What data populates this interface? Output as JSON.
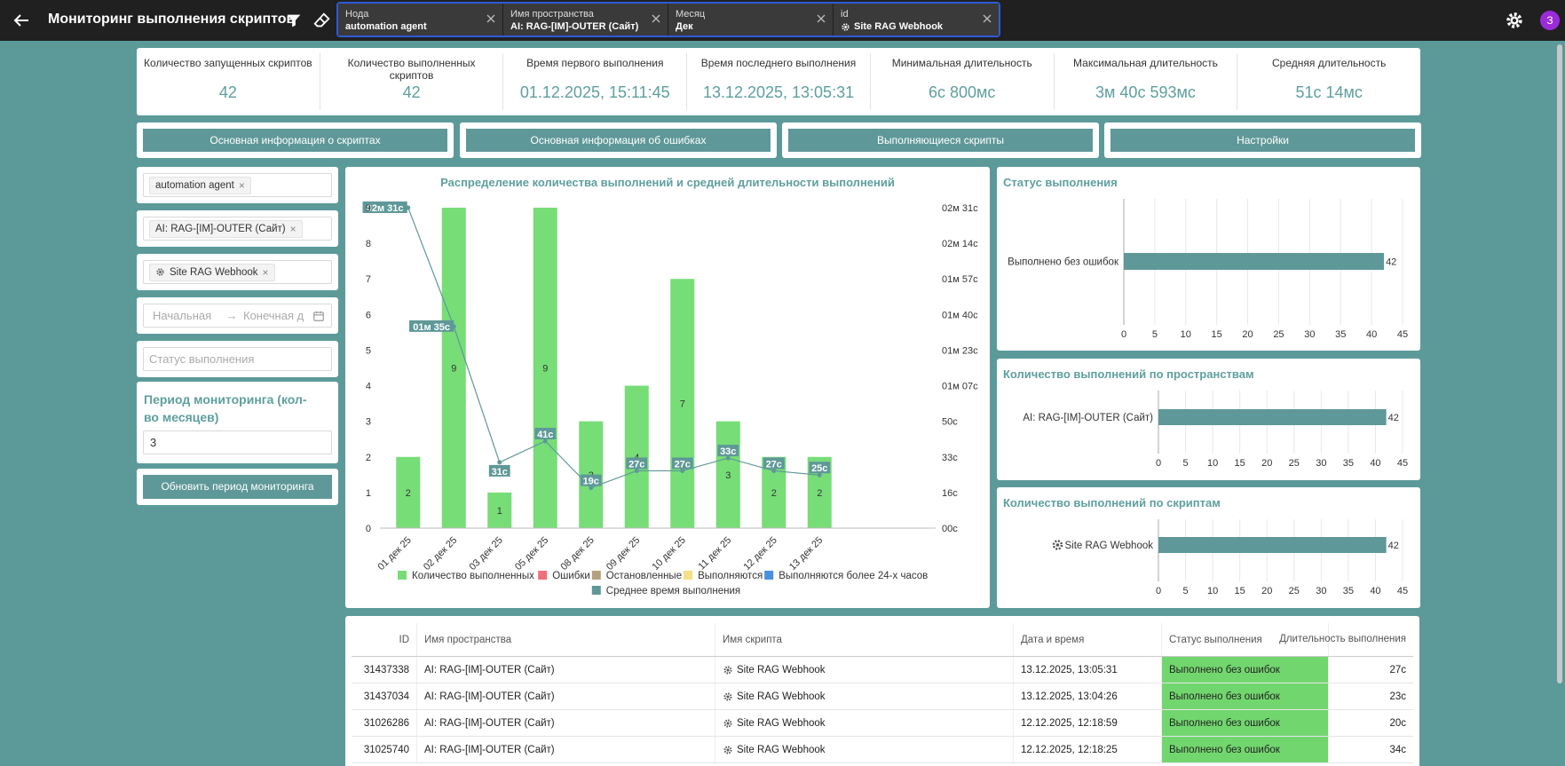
{
  "topbar": {
    "title": "Мониторинг выполнения скриптов",
    "filters": [
      {
        "label": "Нода",
        "value": "automation agent"
      },
      {
        "label": "Имя пространства",
        "value": "AI: RAG-[IM]-OUTER (Сайт)"
      },
      {
        "label": "Месяц",
        "value": "Дек"
      },
      {
        "label": "id",
        "value": "Site RAG Webhook"
      }
    ],
    "avatar": "З"
  },
  "stats": [
    {
      "label": "Количество запущенных скриптов",
      "value": "42"
    },
    {
      "label": "Количество выполненных скриптов",
      "value": "42"
    },
    {
      "label": "Время первого выполнения",
      "value": "01.12.2025, 15:11:45"
    },
    {
      "label": "Время последнего выполнения",
      "value": "13.12.2025, 13:05:31"
    },
    {
      "label": "Минимальная длительность",
      "value": "6с 800мс"
    },
    {
      "label": "Максимальная длительность",
      "value": "3м 40с 593мс"
    },
    {
      "label": "Средняя длительность",
      "value": "51с 14мс"
    }
  ],
  "tabs": [
    "Основная информация о скриптах",
    "Основная информация об ошибках",
    "Выполняющиеся скрипты",
    "Настройки"
  ],
  "left_panel": {
    "node_tag": "automation agent",
    "space_tag": "AI: RAG-[IM]-OUTER (Сайт)",
    "script_tag": "Site RAG Webhook",
    "date_start_placeholder": "Начальная",
    "date_end_placeholder": "Конечная д",
    "status_placeholder": "Статус выполнения",
    "period_title": "Период мониторинга (кол-во месяцев)",
    "period_value": "3",
    "update_button": "Обновить период мониторинга"
  },
  "chart_data": [
    {
      "type": "bar",
      "title": "Распределение количества выполнений и средней длительности выполнений",
      "categories": [
        "01 дек 25",
        "02 дек 25",
        "03 дек 25",
        "05 дек 25",
        "08 дек 25",
        "09 дек 25",
        "10 дек 25",
        "11 дек 25",
        "12 дек 25",
        "13 дек 25"
      ],
      "series": [
        {
          "name": "Количество выполненных",
          "values": [
            2,
            9,
            1,
            9,
            3,
            4,
            7,
            3,
            2,
            2
          ],
          "color": "#77dd77"
        },
        {
          "name": "Среднее время выполнения",
          "type": "line",
          "values_seconds": [
            151,
            95,
            31,
            41,
            19,
            27,
            27,
            33,
            27,
            25
          ],
          "labels": [
            "02м 31с",
            "01м 35с",
            "31с",
            "41с",
            "19с",
            "27с",
            "27с",
            "33с",
            "27с",
            "25с"
          ],
          "color": "#5f9898"
        }
      ],
      "ylim": [
        0,
        9
      ],
      "yticks": [
        "0",
        "1",
        "2",
        "3",
        "4",
        "5",
        "6",
        "7",
        "8",
        "9"
      ],
      "y2ticks": [
        "00с",
        "16с",
        "33с",
        "50с",
        "01м 07с",
        "01м 23с",
        "01м 40с",
        "01м 57с",
        "02м 14с",
        "02м 31с"
      ],
      "legend": [
        {
          "name": "Количество выполненных",
          "color": "#77dd77"
        },
        {
          "name": "Ошибки",
          "color": "#ef6f7a"
        },
        {
          "name": "Остановленные",
          "color": "#b5a07e"
        },
        {
          "name": "Выполняются",
          "color": "#f6df84"
        },
        {
          "name": "Выполняются более 24-х часов",
          "color": "#4a90e2"
        },
        {
          "name": "Среднее время выполнения",
          "color": "#5f9898"
        }
      ]
    },
    {
      "type": "bar",
      "title": "Статус выполнения",
      "categories": [
        "Выполнено без ошибок"
      ],
      "values": [
        42
      ],
      "xlim": [
        0,
        45
      ],
      "xticks": [
        "0",
        "5",
        "10",
        "15",
        "20",
        "25",
        "30",
        "35",
        "40",
        "45"
      ]
    },
    {
      "type": "bar",
      "title": "Количество выполнений по пространствам",
      "categories": [
        "AI: RAG-[IM]-OUTER (Сайт)"
      ],
      "values": [
        42
      ],
      "xlim": [
        0,
        45
      ],
      "xticks": [
        "0",
        "5",
        "10",
        "15",
        "20",
        "25",
        "30",
        "35",
        "40",
        "45"
      ]
    },
    {
      "type": "bar",
      "title": "Количество выполнений по скриптам",
      "categories": [
        "Site RAG Webhook"
      ],
      "values": [
        42
      ],
      "xlim": [
        0,
        45
      ],
      "xticks": [
        "0",
        "5",
        "10",
        "15",
        "20",
        "25",
        "30",
        "35",
        "40",
        "45"
      ]
    }
  ],
  "table": {
    "headers": {
      "id": "ID",
      "space": "Имя пространства",
      "script": "Имя скрипта",
      "date": "Дата и время",
      "status": "Статус выполнения",
      "duration": "Длительность выполнения"
    },
    "rows": [
      {
        "id": "31437338",
        "space": "AI: RAG-[IM]-OUTER (Сайт)",
        "script": "Site RAG Webhook",
        "date": "13.12.2025, 13:05:31",
        "status": "Выполнено без ошибок",
        "duration": "27с"
      },
      {
        "id": "31437034",
        "space": "AI: RAG-[IM]-OUTER (Сайт)",
        "script": "Site RAG Webhook",
        "date": "13.12.2025, 13:04:26",
        "status": "Выполнено без ошибок",
        "duration": "23с"
      },
      {
        "id": "31026286",
        "space": "AI: RAG-[IM]-OUTER (Сайт)",
        "script": "Site RAG Webhook",
        "date": "12.12.2025, 12:18:59",
        "status": "Выполнено без ошибок",
        "duration": "20с"
      },
      {
        "id": "31025740",
        "space": "AI: RAG-[IM]-OUTER (Сайт)",
        "script": "Site RAG Webhook",
        "date": "12.12.2025, 12:18:25",
        "status": "Выполнено без ошибок",
        "duration": "34с"
      }
    ]
  }
}
